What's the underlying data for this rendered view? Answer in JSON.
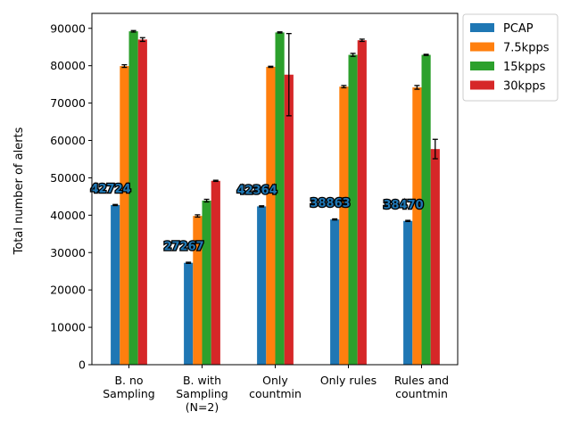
{
  "chart_data": {
    "type": "bar",
    "title": "",
    "xlabel": "",
    "ylabel": "Total number of alerts",
    "ylim": [
      0,
      94000
    ],
    "yticks": [
      0,
      10000,
      20000,
      30000,
      40000,
      50000,
      60000,
      70000,
      80000,
      90000
    ],
    "grid": false,
    "legend_position": "outside-top-right",
    "categories": [
      [
        "B. no",
        "Sampling"
      ],
      [
        "B. with",
        "Sampling",
        "(N=2)"
      ],
      [
        "Only",
        "countmin"
      ],
      [
        "Only rules"
      ],
      [
        "Rules and",
        "countmin"
      ]
    ],
    "series": [
      {
        "name": "PCAP",
        "color": "#1f77b4",
        "values": [
          42724,
          27267,
          42364,
          38863,
          38470
        ],
        "errors": [
          150,
          150,
          150,
          150,
          150
        ]
      },
      {
        "name": "7.5kpps",
        "color": "#ff7f0e",
        "values": [
          79900,
          39800,
          79700,
          74400,
          74200
        ],
        "errors": [
          350,
          300,
          150,
          300,
          500
        ]
      },
      {
        "name": "15kpps",
        "color": "#2ca02c",
        "values": [
          89200,
          43900,
          88900,
          82900,
          82900
        ],
        "errors": [
          200,
          350,
          150,
          400,
          150
        ]
      },
      {
        "name": "30kpps",
        "color": "#d62728",
        "values": [
          87000,
          49200,
          77600,
          86800,
          57700
        ],
        "errors": [
          500,
          150,
          11000,
          300,
          2600
        ]
      }
    ],
    "annotations": [
      "42724",
      "27267",
      "42364",
      "38863",
      "38470"
    ]
  }
}
